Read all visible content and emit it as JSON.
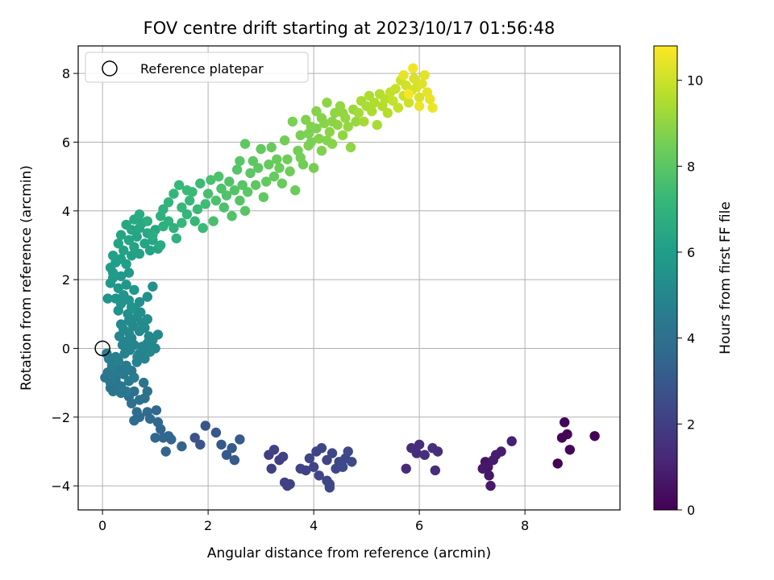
{
  "chart_data": {
    "type": "scatter",
    "title": "FOV centre drift starting at 2023/10/17 01:56:48",
    "xlabel": "Angular distance from reference (arcmin)",
    "ylabel": "Rotation from reference (arcmin)",
    "xlim": [
      -0.46,
      9.8
    ],
    "ylim": [
      -4.7,
      8.8
    ],
    "x_ticks": [
      0,
      2,
      4,
      6,
      8
    ],
    "y_ticks": [
      -4,
      -2,
      0,
      2,
      4,
      6,
      8
    ],
    "grid": true,
    "legend": {
      "placement": "top-left",
      "entries": [
        "Reference platepar"
      ]
    },
    "reference_point": {
      "x": 0,
      "y": 0,
      "label": "Reference platepar"
    },
    "colorbar": {
      "label": "Hours from first FF file",
      "range": [
        0,
        10.8
      ],
      "ticks": [
        0,
        2,
        4,
        6,
        8,
        10
      ],
      "colormap": "viridis"
    },
    "points": [
      [
        8.62,
        -3.35,
        0.05
      ],
      [
        8.7,
        -2.6,
        0.1
      ],
      [
        8.75,
        -2.15,
        0.15
      ],
      [
        8.8,
        -2.5,
        0.12
      ],
      [
        8.85,
        -2.95,
        0.18
      ],
      [
        9.32,
        -2.55,
        0.08
      ],
      [
        7.25,
        -3.3,
        0.6
      ],
      [
        7.3,
        -3.45,
        0.7
      ],
      [
        7.32,
        -3.7,
        0.65
      ],
      [
        7.35,
        -4.0,
        0.75
      ],
      [
        7.4,
        -3.25,
        0.8
      ],
      [
        7.45,
        -3.1,
        0.85
      ],
      [
        7.55,
        -3.0,
        0.9
      ],
      [
        7.75,
        -2.7,
        0.95
      ],
      [
        7.2,
        -3.5,
        0.72
      ],
      [
        5.75,
        -3.5,
        1.3
      ],
      [
        5.85,
        -2.9,
        1.35
      ],
      [
        5.95,
        -3.05,
        1.4
      ],
      [
        6.0,
        -2.8,
        1.38
      ],
      [
        6.1,
        -3.1,
        1.45
      ],
      [
        6.25,
        -2.9,
        1.5
      ],
      [
        6.3,
        -3.55,
        1.42
      ],
      [
        6.35,
        -3.0,
        1.48
      ],
      [
        3.15,
        -3.1,
        2.0
      ],
      [
        3.2,
        -3.5,
        2.05
      ],
      [
        3.25,
        -2.95,
        2.1
      ],
      [
        3.35,
        -3.25,
        2.0
      ],
      [
        3.42,
        -3.15,
        2.15
      ],
      [
        3.45,
        -3.9,
        2.1
      ],
      [
        3.5,
        -4.0,
        2.05
      ],
      [
        3.55,
        -3.95,
        2.12
      ],
      [
        3.75,
        -3.5,
        2.2
      ],
      [
        3.85,
        -3.55,
        2.15
      ],
      [
        3.92,
        -3.2,
        2.25
      ],
      [
        4.0,
        -3.45,
        2.18
      ],
      [
        4.05,
        -3.0,
        2.22
      ],
      [
        4.1,
        -3.7,
        2.28
      ],
      [
        4.15,
        -2.9,
        2.3
      ],
      [
        4.25,
        -3.25,
        2.25
      ],
      [
        4.3,
        -3.95,
        2.32
      ],
      [
        4.35,
        -3.05,
        2.35
      ],
      [
        4.42,
        -3.5,
        2.3
      ],
      [
        4.48,
        -3.3,
        2.38
      ],
      [
        4.55,
        -3.45,
        2.4
      ],
      [
        4.6,
        -3.2,
        2.36
      ],
      [
        4.65,
        -3.0,
        2.42
      ],
      [
        4.72,
        -3.3,
        2.45
      ],
      [
        4.25,
        -3.85,
        2.3
      ],
      [
        4.3,
        -4.05,
        2.34
      ],
      [
        1.75,
        -2.6,
        2.8
      ],
      [
        1.85,
        -2.8,
        2.85
      ],
      [
        1.95,
        -2.25,
        2.9
      ],
      [
        2.15,
        -2.45,
        2.95
      ],
      [
        2.25,
        -2.8,
        3.0
      ],
      [
        2.35,
        -3.1,
        3.05
      ],
      [
        2.45,
        -2.9,
        3.08
      ],
      [
        2.5,
        -3.25,
        3.1
      ],
      [
        2.6,
        -2.65,
        3.12
      ],
      [
        1.1,
        -2.35,
        3.5
      ],
      [
        1.15,
        -2.6,
        3.55
      ],
      [
        1.2,
        -3.0,
        3.52
      ],
      [
        1.25,
        -2.55,
        3.6
      ],
      [
        1.3,
        -2.65,
        3.58
      ],
      [
        1.05,
        -2.15,
        3.65
      ],
      [
        1.02,
        -1.8,
        3.7
      ],
      [
        0.9,
        -2.05,
        3.72
      ],
      [
        0.85,
        -1.85,
        3.75
      ],
      [
        0.7,
        -2.0,
        3.8
      ],
      [
        0.65,
        -1.85,
        3.82
      ],
      [
        0.6,
        -2.1,
        3.85
      ],
      [
        1.0,
        -2.6,
        3.6
      ],
      [
        1.5,
        -2.85,
        3.5
      ],
      [
        0.55,
        -1.6,
        3.95
      ],
      [
        0.6,
        -1.25,
        4.0
      ],
      [
        0.7,
        -1.5,
        4.05
      ],
      [
        0.8,
        -1.45,
        4.02
      ],
      [
        0.85,
        -1.25,
        4.1
      ],
      [
        0.78,
        -1.0,
        4.15
      ],
      [
        0.5,
        -1.4,
        3.98
      ],
      [
        0.05,
        -0.85,
        4.2
      ],
      [
        0.1,
        -0.7,
        4.25
      ],
      [
        0.15,
        -1.0,
        4.22
      ],
      [
        0.2,
        -1.25,
        4.3
      ],
      [
        0.25,
        -0.9,
        4.28
      ],
      [
        0.3,
        -0.6,
        4.35
      ],
      [
        0.35,
        -1.1,
        4.32
      ],
      [
        0.4,
        -0.75,
        4.4
      ],
      [
        0.45,
        -1.25,
        4.38
      ],
      [
        0.5,
        -0.95,
        4.42
      ],
      [
        0.55,
        -0.65,
        4.45
      ],
      [
        0.6,
        -0.85,
        4.5
      ],
      [
        0.18,
        -0.5,
        4.55
      ],
      [
        0.12,
        -0.3,
        4.6
      ],
      [
        0.08,
        -0.15,
        4.62
      ],
      [
        0.25,
        -0.25,
        4.65
      ],
      [
        0.3,
        -0.35,
        4.7
      ],
      [
        0.22,
        -0.75,
        4.4
      ],
      [
        0.35,
        -1.3,
        4.3
      ],
      [
        0.28,
        -1.05,
        4.33
      ],
      [
        0.45,
        -0.5,
        4.5
      ],
      [
        0.15,
        -1.15,
        4.25
      ],
      [
        0.65,
        -0.4,
        4.8
      ],
      [
        0.7,
        -0.15,
        4.85
      ],
      [
        0.75,
        0.05,
        4.9
      ],
      [
        0.8,
        -0.3,
        4.88
      ],
      [
        0.85,
        0.15,
        4.95
      ],
      [
        0.9,
        -0.1,
        5.0
      ],
      [
        0.95,
        0.25,
        5.05
      ],
      [
        1.0,
        0.0,
        5.02
      ],
      [
        1.05,
        0.4,
        5.1
      ],
      [
        0.6,
        0.1,
        4.92
      ],
      [
        0.55,
        0.3,
        5.0
      ],
      [
        0.5,
        0.45,
        5.05
      ],
      [
        0.45,
        0.2,
        4.98
      ],
      [
        0.4,
        0.55,
        5.1
      ],
      [
        0.35,
        0.7,
        5.15
      ],
      [
        0.7,
        0.5,
        5.12
      ],
      [
        0.75,
        0.75,
        5.2
      ],
      [
        0.8,
        0.6,
        5.18
      ],
      [
        0.85,
        0.85,
        5.25
      ],
      [
        0.65,
        0.9,
        5.22
      ],
      [
        0.58,
        0.65,
        5.15
      ],
      [
        0.5,
        0.8,
        5.2
      ],
      [
        0.72,
        1.05,
        5.3
      ],
      [
        0.62,
        1.15,
        5.32
      ],
      [
        0.48,
        1.0,
        5.28
      ],
      [
        0.88,
        0.35,
        5.08
      ],
      [
        0.92,
        0.05,
        5.03
      ],
      [
        0.78,
        -0.05,
        4.9
      ],
      [
        0.66,
        -0.25,
        4.85
      ],
      [
        0.52,
        -0.05,
        4.88
      ],
      [
        0.42,
        -0.15,
        4.82
      ],
      [
        0.38,
        0.1,
        4.9
      ],
      [
        0.32,
        0.35,
        5.0
      ],
      [
        0.3,
        1.1,
        5.5
      ],
      [
        0.35,
        1.3,
        5.55
      ],
      [
        0.25,
        1.45,
        5.6
      ],
      [
        0.4,
        1.55,
        5.58
      ],
      [
        0.5,
        1.4,
        5.62
      ],
      [
        0.55,
        1.2,
        5.55
      ],
      [
        0.6,
        1.7,
        5.65
      ],
      [
        0.45,
        1.85,
        5.7
      ],
      [
        0.3,
        1.75,
        5.68
      ],
      [
        0.15,
        1.9,
        5.72
      ],
      [
        0.2,
        2.05,
        5.78
      ],
      [
        0.35,
        2.1,
        5.8
      ],
      [
        0.5,
        2.2,
        5.82
      ],
      [
        0.1,
        1.45,
        5.6
      ],
      [
        0.95,
        1.8,
        5.5
      ],
      [
        0.85,
        1.5,
        5.45
      ],
      [
        0.7,
        1.35,
        5.4
      ],
      [
        0.15,
        2.35,
        6.0
      ],
      [
        0.25,
        2.5,
        6.05
      ],
      [
        0.35,
        2.6,
        6.1
      ],
      [
        0.45,
        2.45,
        6.08
      ],
      [
        0.55,
        2.7,
        6.15
      ],
      [
        0.2,
        2.7,
        6.12
      ],
      [
        0.4,
        2.85,
        6.2
      ],
      [
        0.6,
        2.95,
        6.25
      ],
      [
        0.7,
        2.75,
        6.2
      ],
      [
        0.3,
        3.05,
        6.28
      ],
      [
        0.5,
        3.15,
        6.32
      ],
      [
        0.65,
        3.25,
        6.35
      ],
      [
        0.8,
        3.05,
        6.3
      ],
      [
        0.9,
        2.85,
        6.25
      ],
      [
        0.55,
        3.45,
        6.4
      ],
      [
        0.7,
        3.5,
        6.45
      ],
      [
        0.85,
        3.35,
        6.42
      ],
      [
        0.45,
        3.6,
        6.5
      ],
      [
        0.6,
        3.75,
        6.55
      ],
      [
        0.75,
        3.65,
        6.52
      ],
      [
        0.95,
        3.15,
        6.4
      ],
      [
        1.0,
        3.45,
        6.5
      ],
      [
        1.05,
        2.9,
        6.35
      ],
      [
        0.2,
        2.2,
        5.9
      ],
      [
        0.35,
        3.3,
        6.35
      ],
      [
        0.7,
        3.9,
        6.7
      ],
      [
        0.85,
        3.7,
        6.75
      ],
      [
        0.95,
        3.3,
        6.7
      ],
      [
        1.1,
        3.0,
        6.6
      ],
      [
        1.15,
        3.55,
        6.8
      ],
      [
        1.1,
        3.85,
        6.85
      ],
      [
        1.15,
        4.05,
        6.9
      ],
      [
        1.25,
        3.7,
        6.88
      ],
      [
        1.35,
        3.5,
        6.85
      ],
      [
        1.4,
        3.2,
        6.9
      ],
      [
        1.25,
        4.25,
        7.1
      ],
      [
        1.35,
        4.5,
        7.15
      ],
      [
        1.45,
        4.75,
        7.2
      ],
      [
        1.5,
        4.1,
        7.18
      ],
      [
        1.6,
        3.9,
        7.15
      ],
      [
        1.65,
        4.3,
        7.25
      ],
      [
        1.7,
        4.55,
        7.3
      ],
      [
        1.75,
        3.7,
        7.22
      ],
      [
        1.8,
        4.05,
        7.28
      ],
      [
        1.85,
        4.8,
        7.35
      ],
      [
        1.9,
        3.5,
        7.3
      ],
      [
        1.95,
        4.2,
        7.4
      ],
      [
        1.6,
        4.6,
        7.32
      ],
      [
        1.5,
        3.65,
        7.2
      ],
      [
        2.0,
        4.5,
        7.6
      ],
      [
        2.05,
        4.9,
        7.65
      ],
      [
        2.1,
        3.7,
        7.6
      ],
      [
        2.15,
        4.3,
        7.7
      ],
      [
        2.2,
        5.0,
        7.75
      ],
      [
        2.25,
        4.65,
        7.72
      ],
      [
        2.3,
        4.1,
        7.7
      ],
      [
        2.35,
        4.45,
        7.8
      ],
      [
        2.4,
        4.85,
        7.82
      ],
      [
        2.45,
        3.85,
        7.78
      ],
      [
        2.5,
        4.6,
        7.85
      ],
      [
        2.55,
        5.2,
        7.88
      ],
      [
        2.6,
        4.3,
        7.9
      ],
      [
        2.65,
        4.75,
        7.92
      ],
      [
        2.7,
        4.0,
        7.95
      ],
      [
        2.75,
        4.55,
        8.0
      ],
      [
        2.8,
        5.1,
        8.02
      ],
      [
        2.6,
        5.45,
        7.95
      ],
      [
        2.7,
        5.95,
        8.1
      ],
      [
        2.85,
        5.45,
        8.05
      ],
      [
        2.9,
        4.75,
        8.08
      ],
      [
        2.95,
        5.25,
        8.1
      ],
      [
        3.0,
        5.8,
        8.15
      ],
      [
        3.05,
        4.4,
        8.12
      ],
      [
        3.1,
        4.85,
        8.18
      ],
      [
        3.15,
        5.35,
        8.2
      ],
      [
        3.2,
        5.85,
        8.25
      ],
      [
        3.25,
        5.0,
        8.22
      ],
      [
        3.3,
        5.5,
        8.28
      ],
      [
        3.35,
        5.25,
        8.35
      ],
      [
        3.4,
        4.8,
        8.3
      ],
      [
        3.45,
        6.05,
        8.45
      ],
      [
        3.5,
        5.5,
        8.4
      ],
      [
        3.55,
        5.15,
        8.38
      ],
      [
        3.6,
        6.6,
        8.6
      ],
      [
        3.65,
        4.6,
        8.35
      ],
      [
        3.7,
        5.75,
        8.5
      ],
      [
        3.75,
        6.2,
        8.6
      ],
      [
        3.8,
        5.35,
        8.45
      ],
      [
        3.85,
        6.65,
        8.7
      ],
      [
        3.9,
        5.9,
        8.65
      ],
      [
        3.95,
        6.45,
        8.72
      ],
      [
        4.0,
        5.25,
        8.55
      ],
      [
        4.05,
        6.9,
        8.8
      ],
      [
        4.1,
        6.1,
        8.75
      ],
      [
        4.15,
        5.75,
        8.7
      ],
      [
        4.2,
        6.55,
        8.85
      ],
      [
        4.25,
        7.15,
        8.95
      ],
      [
        4.3,
        6.3,
        8.9
      ],
      [
        4.35,
        5.95,
        8.85
      ],
      [
        4.4,
        6.85,
        9.0
      ],
      [
        4.45,
        6.5,
        8.98
      ],
      [
        4.5,
        7.05,
        9.05
      ],
      [
        4.55,
        6.2,
        9.0
      ],
      [
        4.6,
        6.7,
        9.1
      ],
      [
        4.65,
        6.45,
        9.08
      ],
      [
        4.7,
        5.85,
        9.0
      ],
      [
        4.75,
        6.95,
        9.15
      ],
      [
        4.8,
        6.6,
        9.12
      ],
      [
        3.95,
        6.0,
        8.6
      ],
      [
        4.05,
        6.4,
        8.7
      ],
      [
        4.25,
        6.05,
        8.8
      ],
      [
        4.35,
        6.6,
        8.92
      ],
      [
        4.55,
        6.85,
        9.05
      ],
      [
        3.75,
        5.55,
        8.5
      ],
      [
        3.9,
        6.25,
        8.65
      ],
      [
        4.15,
        6.7,
        8.82
      ],
      [
        4.85,
        6.85,
        9.3
      ],
      [
        4.9,
        7.2,
        9.4
      ],
      [
        4.95,
        6.6,
        9.35
      ],
      [
        5.0,
        7.05,
        9.45
      ],
      [
        5.05,
        7.35,
        9.5
      ],
      [
        5.1,
        6.9,
        9.48
      ],
      [
        5.15,
        7.15,
        9.55
      ],
      [
        5.2,
        6.5,
        9.4
      ],
      [
        5.25,
        7.4,
        9.6
      ],
      [
        5.3,
        7.05,
        9.58
      ],
      [
        5.35,
        7.25,
        9.65
      ],
      [
        5.4,
        6.85,
        9.6
      ],
      [
        5.45,
        7.45,
        9.8
      ],
      [
        5.5,
        7.2,
        9.85
      ],
      [
        5.55,
        7.55,
        9.9
      ],
      [
        5.6,
        7.0,
        9.88
      ],
      [
        5.65,
        7.8,
        10.0
      ],
      [
        5.7,
        7.35,
        9.98
      ],
      [
        5.75,
        7.65,
        10.05
      ],
      [
        5.8,
        7.15,
        10.0
      ],
      [
        5.85,
        7.5,
        10.1
      ],
      [
        5.9,
        7.85,
        10.2
      ],
      [
        5.95,
        7.6,
        10.15
      ],
      [
        6.0,
        7.3,
        10.2
      ],
      [
        6.05,
        7.7,
        10.3
      ],
      [
        6.1,
        7.95,
        10.35
      ],
      [
        6.15,
        7.45,
        10.4
      ],
      [
        6.2,
        7.25,
        10.45
      ],
      [
        6.25,
        7.0,
        10.5
      ],
      [
        5.88,
        8.15,
        10.6
      ],
      [
        5.7,
        7.95,
        10.4
      ],
      [
        6.0,
        7.05,
        10.55
      ],
      [
        5.8,
        7.4,
        10.7
      ]
    ]
  }
}
